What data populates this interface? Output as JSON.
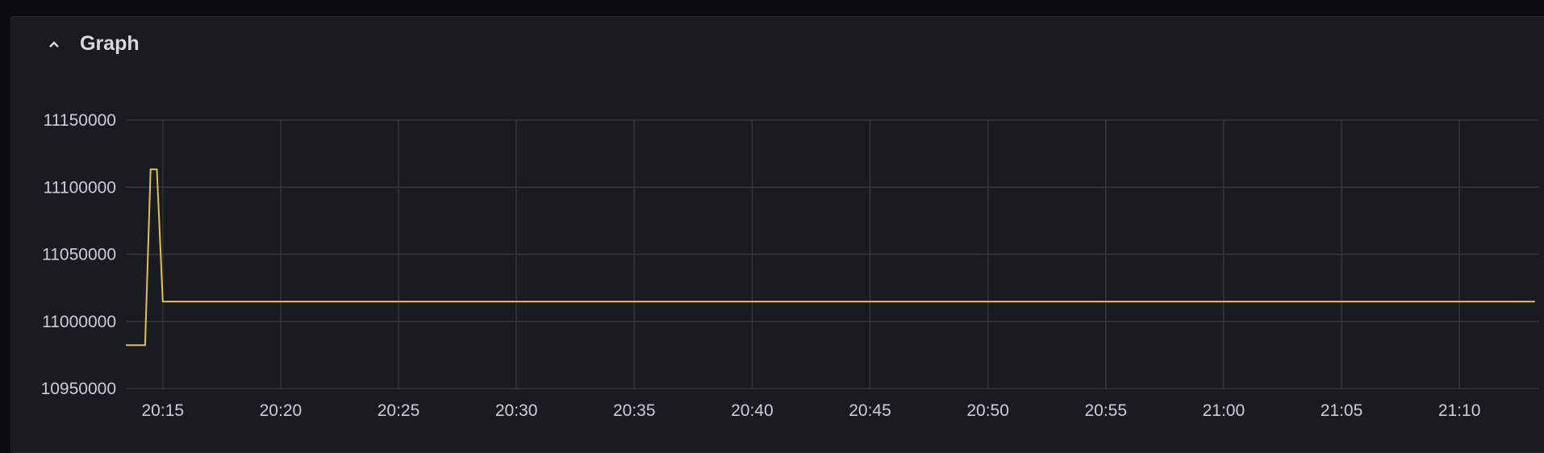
{
  "panel": {
    "title": "Graph",
    "collapse_icon": "chevron-up-icon"
  },
  "chart_data": {
    "type": "line",
    "title": "",
    "xlabel": "",
    "ylabel": "",
    "grid": true,
    "ylim": [
      10950000,
      11150000
    ],
    "xlim": [
      "20:13:26",
      "21:13:23"
    ],
    "y_ticks": [
      "10950000",
      "11000000",
      "11050000",
      "11100000",
      "11150000"
    ],
    "x_ticks": [
      "20:15",
      "20:20",
      "20:25",
      "20:30",
      "20:35",
      "20:40",
      "20:45",
      "20:50",
      "20:55",
      "21:00",
      "21:05",
      "21:10"
    ],
    "series": [
      {
        "color": "#e5bd5a",
        "points": [
          {
            "x": "20:13:26",
            "y": 10982300
          },
          {
            "x": "20:14:15",
            "y": 10982300
          },
          {
            "x": "20:14:29",
            "y": 11113300
          },
          {
            "x": "20:14:45",
            "y": 11113300
          },
          {
            "x": "20:15:00",
            "y": 11014800
          },
          {
            "x": "21:13:12",
            "y": 11014800
          }
        ]
      }
    ]
  }
}
